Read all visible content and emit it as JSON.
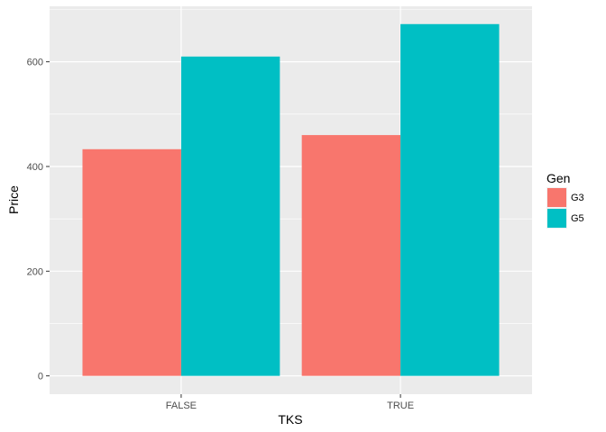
{
  "chart_data": {
    "type": "bar",
    "categories": [
      "FALSE",
      "TRUE"
    ],
    "series": [
      {
        "name": "G3",
        "values": [
          433,
          460
        ],
        "color": "#F8766D"
      },
      {
        "name": "G5",
        "values": [
          610,
          672
        ],
        "color": "#00BFC4"
      }
    ],
    "xlabel": "TKS",
    "ylabel": "Price",
    "ylim": [
      -35,
      706
    ],
    "yticks": [
      0,
      200,
      400,
      600
    ],
    "legend": {
      "title": "Gen",
      "placement": "right"
    },
    "grid": true,
    "panel_background": "#EBEBEB",
    "grid_color": "#FFFFFF"
  }
}
